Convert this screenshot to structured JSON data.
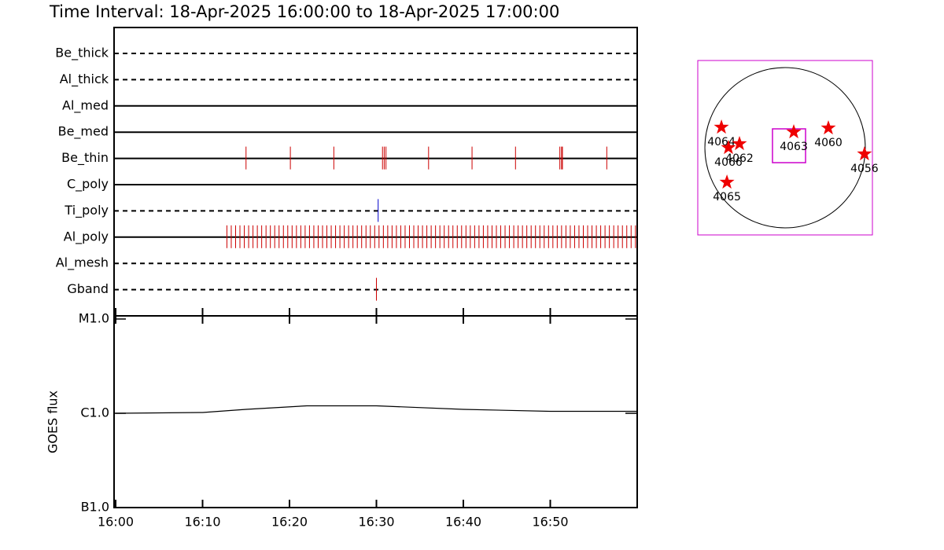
{
  "chart_data": [
    {
      "type": "timeline",
      "title": "Time Interval: 18-Apr-2025 16:00:00 to 18-Apr-2025 17:00:00",
      "xlim": [
        0,
        60
      ],
      "rows": [
        {
          "name": "Be_thick",
          "style": "dashed",
          "color": "#cc0000",
          "times": []
        },
        {
          "name": "Al_thick",
          "style": "dashed",
          "color": "#cc0000",
          "times": []
        },
        {
          "name": "Al_med",
          "style": "solid",
          "color": "#cc0000",
          "times": []
        },
        {
          "name": "Be_med",
          "style": "solid",
          "color": "#cc0000",
          "times": []
        },
        {
          "name": "Be_thin",
          "style": "solid",
          "color": "#cc0000",
          "times": [
            15.0,
            20.1,
            25.1,
            30.7,
            30.9,
            31.1,
            36.0,
            41.0,
            46.0,
            51.1,
            51.3,
            51.4,
            56.5
          ]
        },
        {
          "name": "C_poly",
          "style": "solid",
          "color": "#cc0000",
          "times": []
        },
        {
          "name": "Ti_poly",
          "style": "dashed",
          "color": "#0000cc",
          "times": [
            30.2
          ]
        },
        {
          "name": "Al_poly",
          "style": "solid",
          "color": "#cc0000",
          "times": [
            12.8,
            13.3,
            13.8,
            14.3,
            14.8,
            15.3,
            15.8,
            16.3,
            16.8,
            17.3,
            17.8,
            18.3,
            18.8,
            19.3,
            19.8,
            20.3,
            20.8,
            21.3,
            21.8,
            22.3,
            22.8,
            23.3,
            23.8,
            24.3,
            24.8,
            25.3,
            25.8,
            26.3,
            26.8,
            27.3,
            27.8,
            28.3,
            28.8,
            29.3,
            29.8,
            30.3,
            30.8,
            31.3,
            31.8,
            32.3,
            32.8,
            33.3,
            33.8,
            34.3,
            34.8,
            35.3,
            35.8,
            36.3,
            36.8,
            37.3,
            37.8,
            38.3,
            38.8,
            39.3,
            39.8,
            40.3,
            40.8,
            41.3,
            41.8,
            42.3,
            42.8,
            43.3,
            43.8,
            44.3,
            44.8,
            45.3,
            45.8,
            46.3,
            46.8,
            47.3,
            47.8,
            48.3,
            48.8,
            49.3,
            49.8,
            50.3,
            50.8,
            51.3,
            51.8,
            52.3,
            52.8,
            53.3,
            53.8,
            54.3,
            54.8,
            55.3,
            55.8,
            56.3,
            56.8,
            57.3,
            57.8,
            58.3,
            58.8,
            59.3,
            59.8
          ]
        },
        {
          "name": "Al_mesh",
          "style": "dashed",
          "color": "#cc0000",
          "times": []
        },
        {
          "name": "Gband",
          "style": "dashed",
          "color": "#cc0000",
          "times": [
            30.0
          ]
        }
      ]
    },
    {
      "type": "line",
      "ylabel": "GOES flux",
      "log_y": true,
      "color": "#000000",
      "xlim": [
        0,
        60
      ],
      "xticks": [
        {
          "value": 0,
          "label": "16:00"
        },
        {
          "value": 10,
          "label": "16:10"
        },
        {
          "value": 20,
          "label": "16:20"
        },
        {
          "value": 30,
          "label": "16:30"
        },
        {
          "value": 40,
          "label": "16:40"
        },
        {
          "value": 50,
          "label": "16:50"
        }
      ],
      "ylim": [
        1e-07,
        1e-05
      ],
      "yticks": [
        {
          "value": 1e-07,
          "label": "B1.0"
        },
        {
          "value": 1e-06,
          "label": "C1.0"
        },
        {
          "value": 1e-05,
          "label": "M1.0"
        }
      ],
      "x": [
        0,
        10,
        15,
        22,
        30,
        40,
        50,
        60
      ],
      "values": [
        1e-06,
        1.02e-06,
        1.1e-06,
        1.2e-06,
        1.2e-06,
        1.1e-06,
        1.05e-06,
        1.05e-06
      ]
    },
    {
      "type": "map",
      "xlim": [
        -1045,
        1045
      ],
      "ylim": [
        -1045,
        1045
      ],
      "sun_radius": 960,
      "frame_color": "#cc00cc",
      "marker_color": "#ee0000",
      "fov": {
        "xlim": [
          -151,
          245
        ],
        "ylim": [
          -179,
          226
        ]
      },
      "regions": [
        {
          "label": "4064",
          "x": -762,
          "y": 245
        },
        {
          "label": "4066",
          "x": -678,
          "y": 0
        },
        {
          "label": "4062",
          "x": -546,
          "y": 47
        },
        {
          "label": "4065",
          "x": -696,
          "y": -414
        },
        {
          "label": "4063",
          "x": 104,
          "y": 188
        },
        {
          "label": "4060",
          "x": 518,
          "y": 235
        },
        {
          "label": "4056",
          "x": 950,
          "y": -75
        }
      ]
    }
  ]
}
